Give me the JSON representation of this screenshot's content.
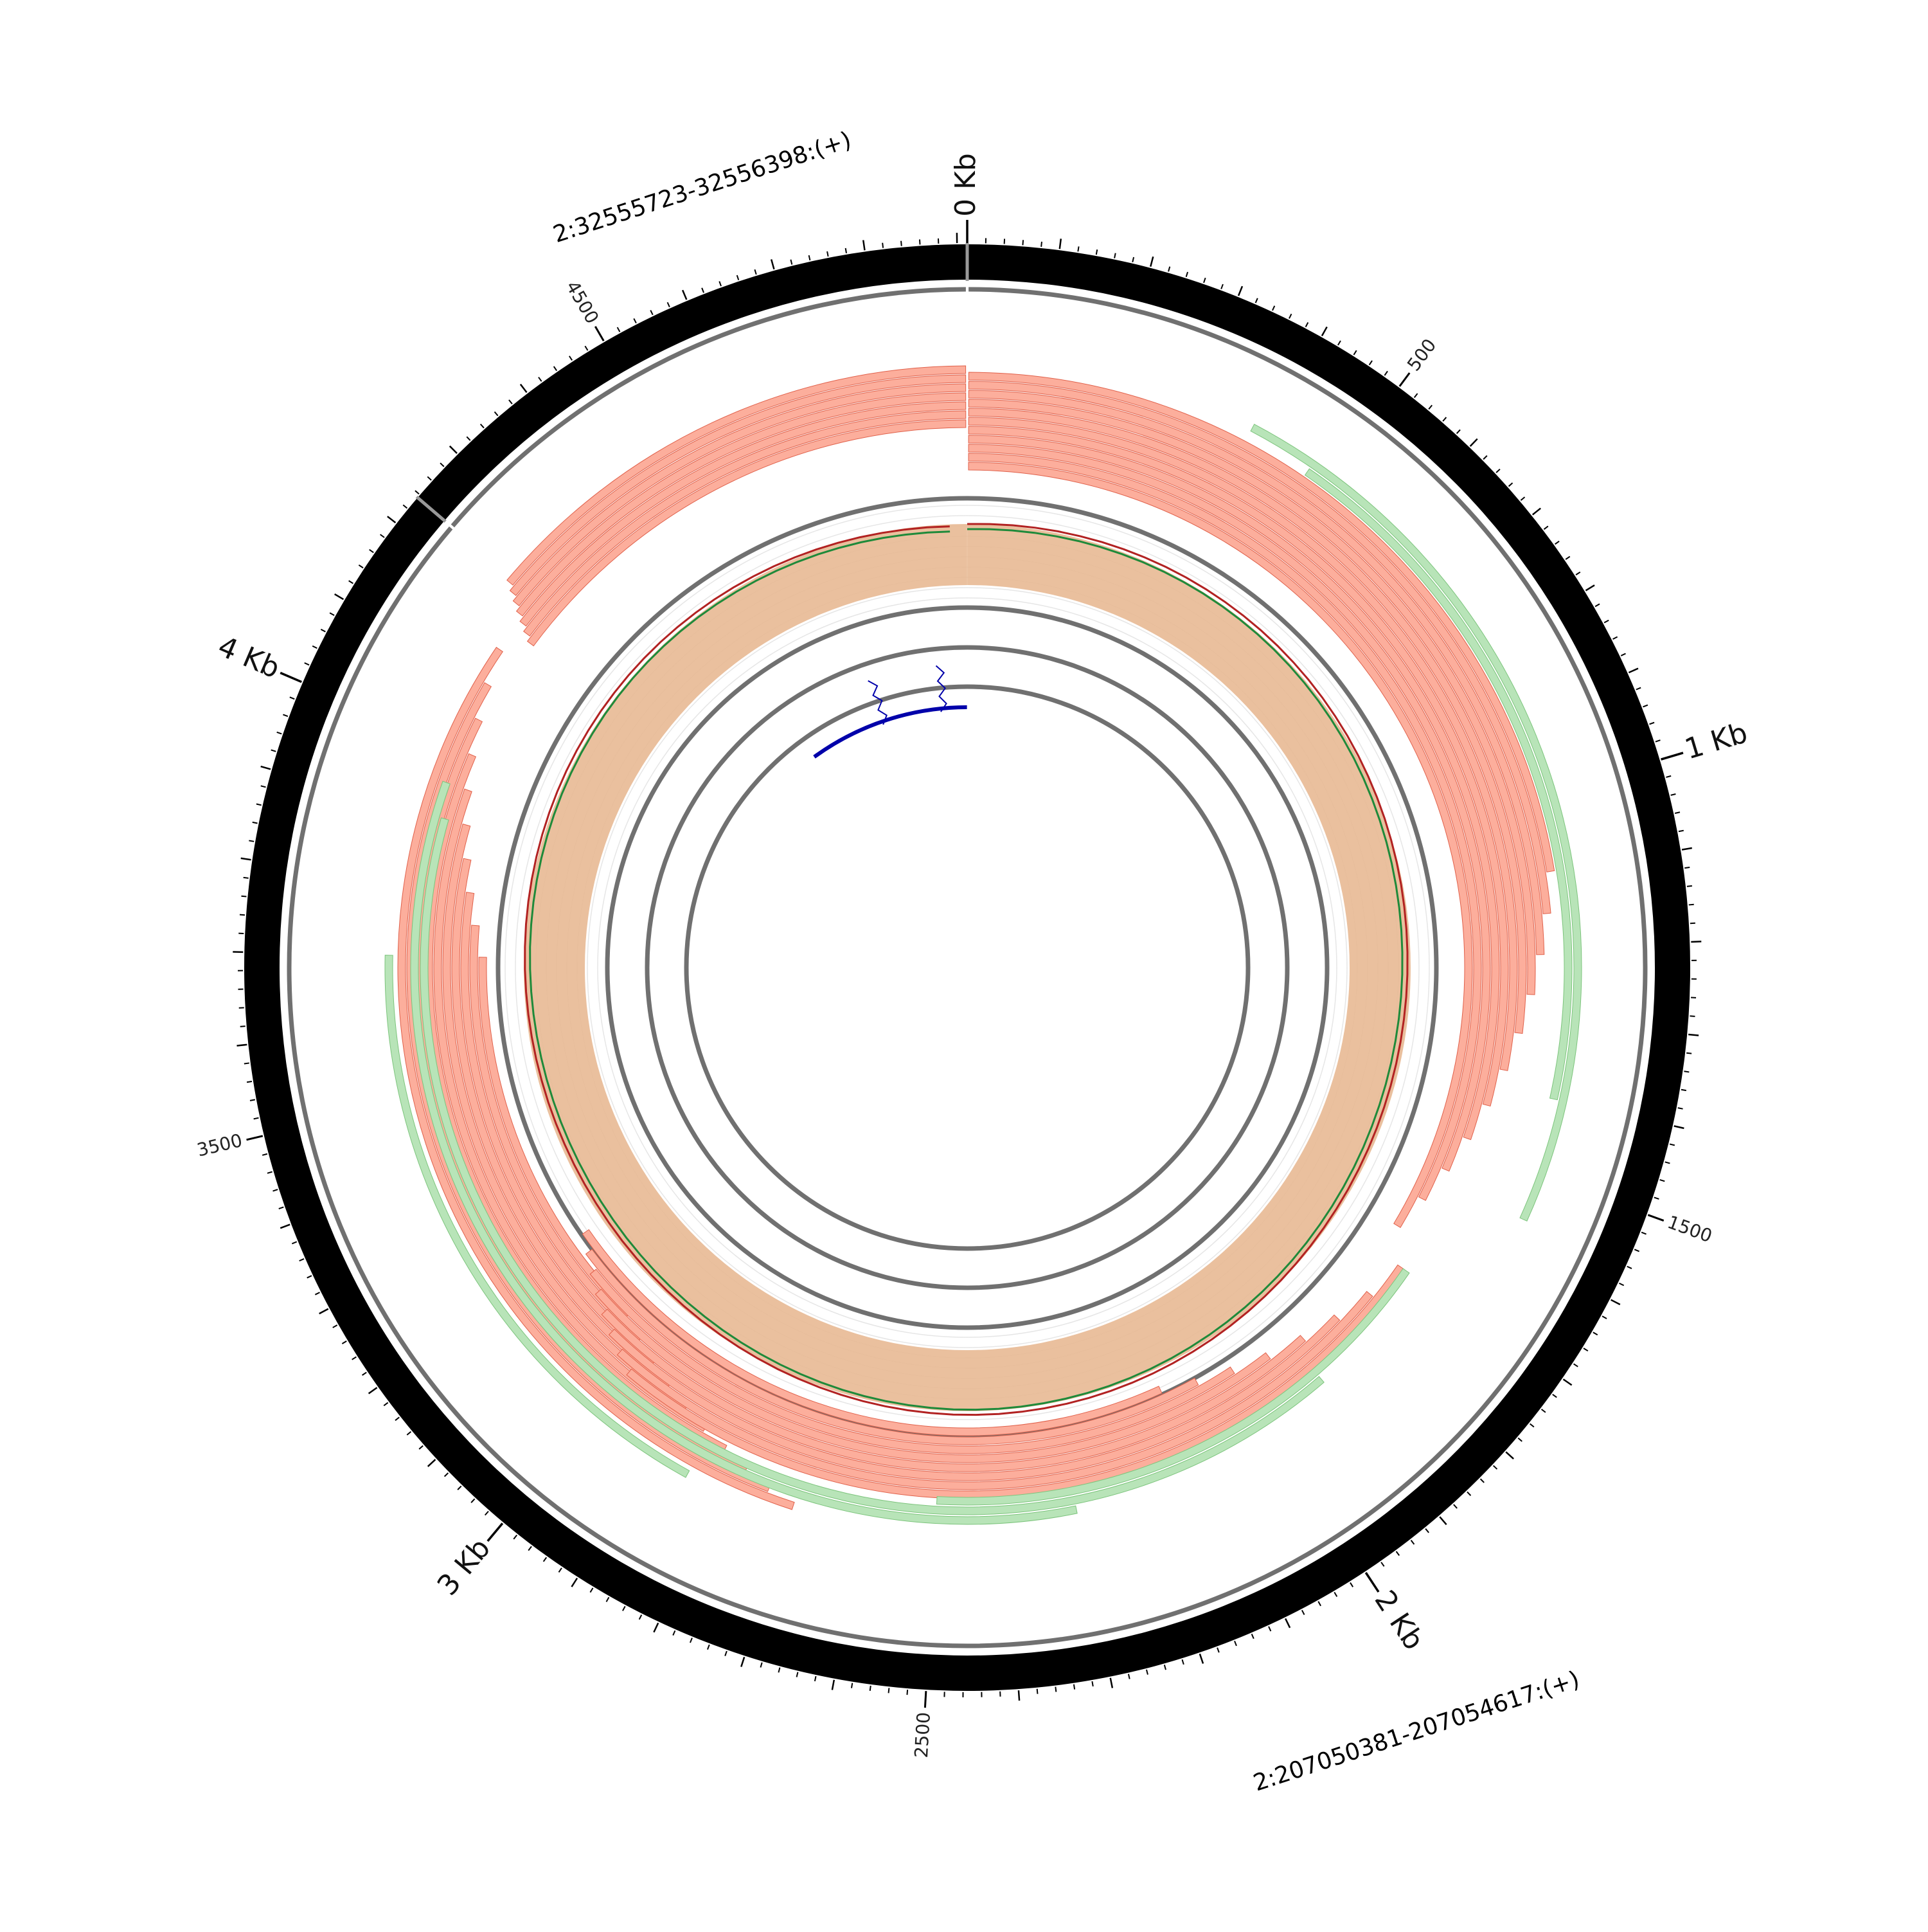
{
  "chart_data": {
    "type": "circos",
    "total_length_bp": 4911,
    "segments": [
      {
        "label": "2:207050381-207054617:(+)",
        "start": 0,
        "end": 4236
      },
      {
        "label": "2:32555723-32556398:(+)",
        "start": 4236,
        "end": 4911
      }
    ],
    "kb_ticks": [
      {
        "pos": 0,
        "label": "0 Kb"
      },
      {
        "pos": 1000,
        "label": "1 Kb"
      },
      {
        "pos": 2000,
        "label": "2 Kb"
      },
      {
        "pos": 3000,
        "label": "3 Kb"
      },
      {
        "pos": 4000,
        "label": "4 Kb"
      }
    ],
    "minor_tick_labels": [
      {
        "pos": 500,
        "label": "500"
      },
      {
        "pos": 1500,
        "label": "1500"
      },
      {
        "pos": 2500,
        "label": "2500"
      },
      {
        "pos": 3500,
        "label": "3500"
      },
      {
        "pos": 4500,
        "label": "4500"
      }
    ],
    "colors": {
      "ideogram": "#000000",
      "read_red": "#fcae9c",
      "read_red_stroke": "#e0604a",
      "read_green": "#b8e4b8",
      "read_green_stroke": "#7cc47c",
      "coverage_fill": "#e8b994",
      "coverage_line_red": "#b22222",
      "coverage_line_green": "#1e8a3a",
      "junction": "#0000aa",
      "ring": "#707070"
    }
  }
}
